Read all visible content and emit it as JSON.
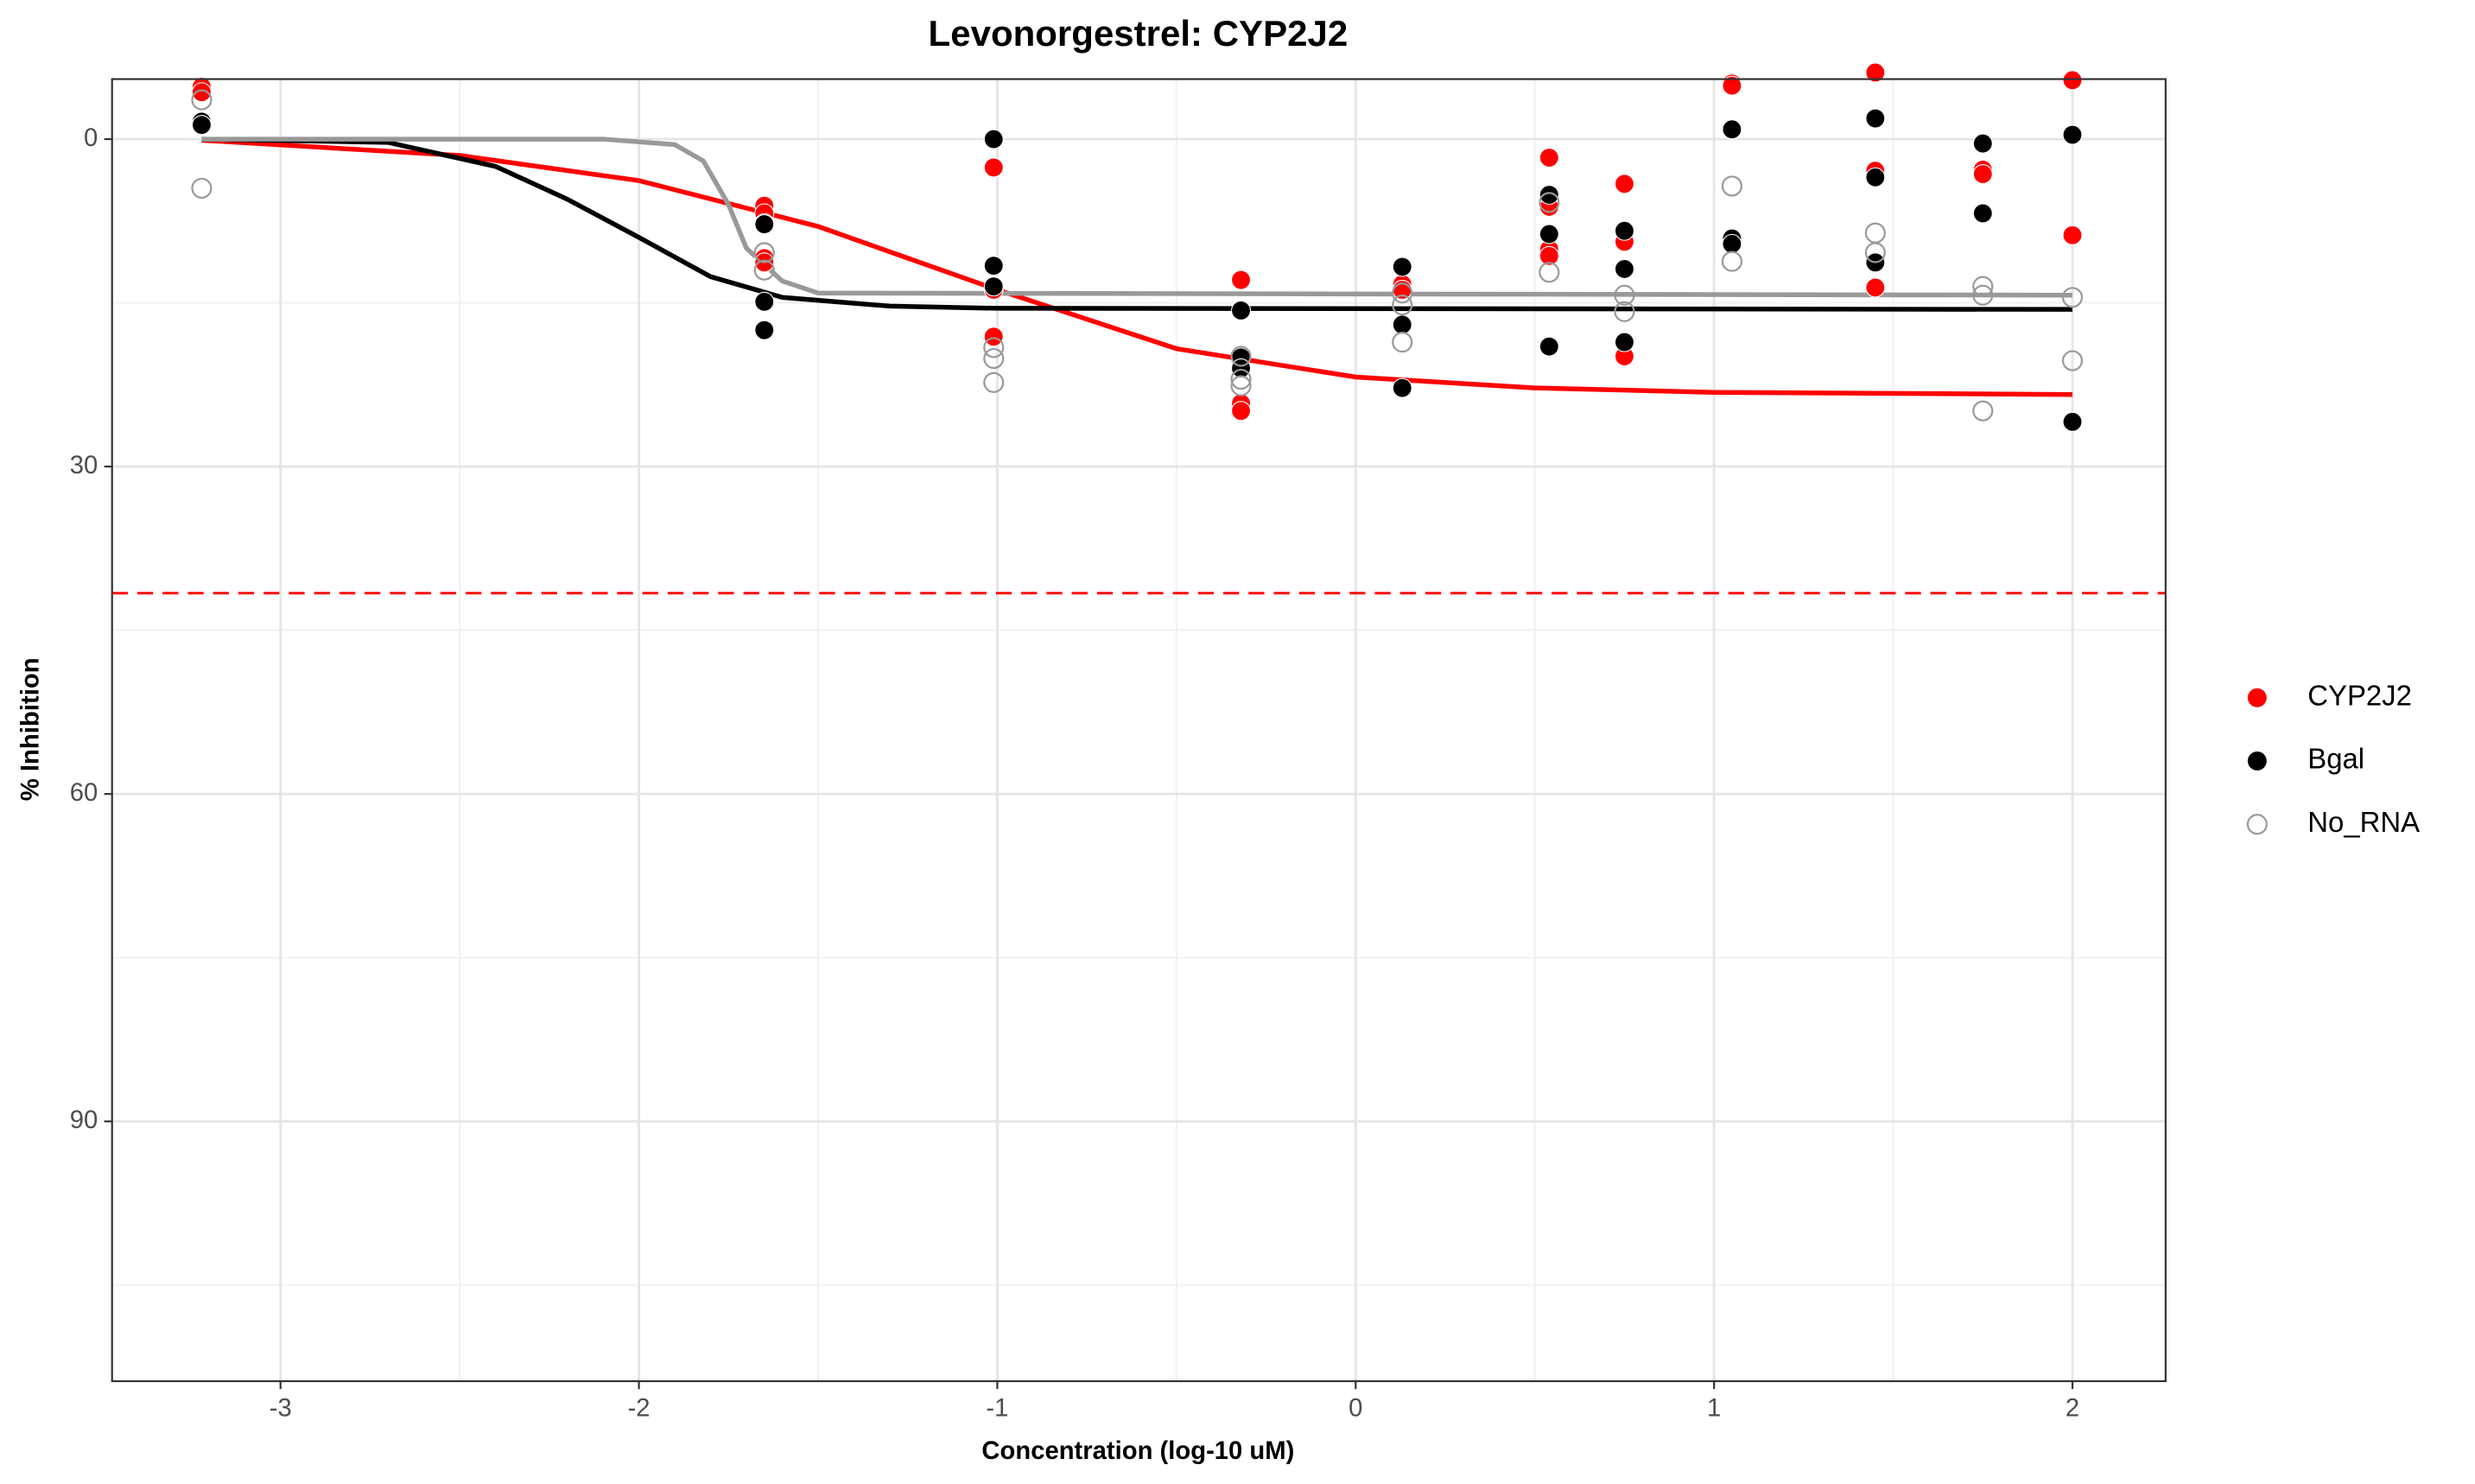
{
  "chart_data": {
    "type": "scatter",
    "title": "Levonorgestrel: CYP2J2",
    "x_label": "Concentration (log-10 uM)",
    "y_label": "% Inhibition",
    "xlim": [
      -3.47,
      2.26
    ],
    "ylim": [
      -5.5,
      113.8
    ],
    "y_reversed": true,
    "xticks": [
      -3,
      -2,
      -1,
      0,
      1,
      2
    ],
    "yticks": [
      0,
      30,
      60,
      90
    ],
    "grid": true,
    "legend": "right",
    "threshold": 41.6,
    "threshold_color": "#ff0000",
    "series": [
      {
        "name": "CYP2J2",
        "color": "#ff0000",
        "filled": true,
        "x": [
          -3.22,
          -3.22,
          -1.65,
          -1.65,
          -1.65,
          -1.65,
          -1.01,
          -1.01,
          -1.01,
          -0.32,
          -0.32,
          -0.32,
          0.13,
          0.13,
          0.54,
          0.54,
          0.54,
          0.54,
          0.75,
          0.75,
          0.75,
          1.05,
          1.05,
          1.45,
          1.45,
          1.45,
          1.75,
          1.75,
          2.0,
          2.0
        ],
        "values": [
          -4.8,
          -4.3,
          6.1,
          6.8,
          10.9,
          11.3,
          2.6,
          13.8,
          18.1,
          12.9,
          24.2,
          24.9,
          13.3,
          13.8,
          1.7,
          6.2,
          10.1,
          10.7,
          4.1,
          9.4,
          19.9,
          -5.1,
          -4.9,
          -6.1,
          2.9,
          13.6,
          2.8,
          3.2,
          -5.4,
          8.8
        ]
      },
      {
        "name": "Bgal",
        "color": "#000000",
        "filled": true,
        "x": [
          -3.22,
          -3.22,
          -1.65,
          -1.65,
          -1.65,
          -1.65,
          -1.01,
          -1.01,
          -1.01,
          -0.32,
          -0.32,
          -0.32,
          0.13,
          0.13,
          0.13,
          0.54,
          0.54,
          0.54,
          0.75,
          0.75,
          0.75,
          1.05,
          1.05,
          1.05,
          1.45,
          1.45,
          1.45,
          1.75,
          1.75,
          2.0,
          2.0
        ],
        "values": [
          -1.6,
          -1.3,
          7.7,
          7.8,
          14.9,
          17.5,
          0,
          11.6,
          13.5,
          15.7,
          20.0,
          21.0,
          11.7,
          17.0,
          22.8,
          5.1,
          8.7,
          19.0,
          8.4,
          11.9,
          18.6,
          -0.9,
          9.1,
          9.6,
          -1.9,
          3.5,
          11.3,
          0.4,
          6.8,
          -0.4,
          25.9
        ]
      },
      {
        "name": "No_RNA",
        "color": "#999999",
        "filled": false,
        "x": [
          -3.22,
          -3.22,
          -1.65,
          -1.65,
          -1.01,
          -1.01,
          -1.01,
          -0.32,
          -0.32,
          -0.32,
          0.13,
          0.13,
          0.13,
          0.54,
          0.54,
          0.75,
          0.75,
          1.05,
          1.05,
          1.45,
          1.45,
          1.75,
          1.75,
          1.75,
          2.0,
          2.0
        ],
        "values": [
          -3.6,
          4.5,
          10.4,
          12.0,
          19.1,
          20.1,
          22.3,
          19.9,
          22.0,
          22.6,
          14.1,
          15.2,
          18.6,
          5.8,
          12.2,
          14.3,
          15.8,
          4.3,
          11.2,
          8.6,
          10.4,
          13.5,
          14.3,
          24.9,
          14.5,
          20.3
        ]
      }
    ],
    "fits": [
      {
        "color": "#ff0000",
        "x": [
          -3.22,
          -2.5,
          -2,
          -1.5,
          -1,
          -0.5,
          0,
          0.5,
          1,
          2
        ],
        "values": [
          0.1,
          1.5,
          3.8,
          8.0,
          13.8,
          19.2,
          21.8,
          22.8,
          23.2,
          23.4
        ]
      },
      {
        "color": "#000000",
        "x": [
          -3.22,
          -2.7,
          -2.4,
          -2.2,
          -2,
          -1.8,
          -1.6,
          -1.3,
          -1,
          2
        ],
        "values": [
          0,
          0.3,
          2.5,
          5.5,
          9.0,
          12.6,
          14.5,
          15.3,
          15.5,
          15.6
        ]
      },
      {
        "color": "#999999",
        "x": [
          -3.22,
          -2.1,
          -1.9,
          -1.82,
          -1.75,
          -1.7,
          -1.6,
          -1.5,
          2
        ],
        "values": [
          0,
          0,
          0.5,
          2.0,
          6.0,
          10.0,
          13.0,
          14.1,
          14.3
        ]
      }
    ]
  }
}
